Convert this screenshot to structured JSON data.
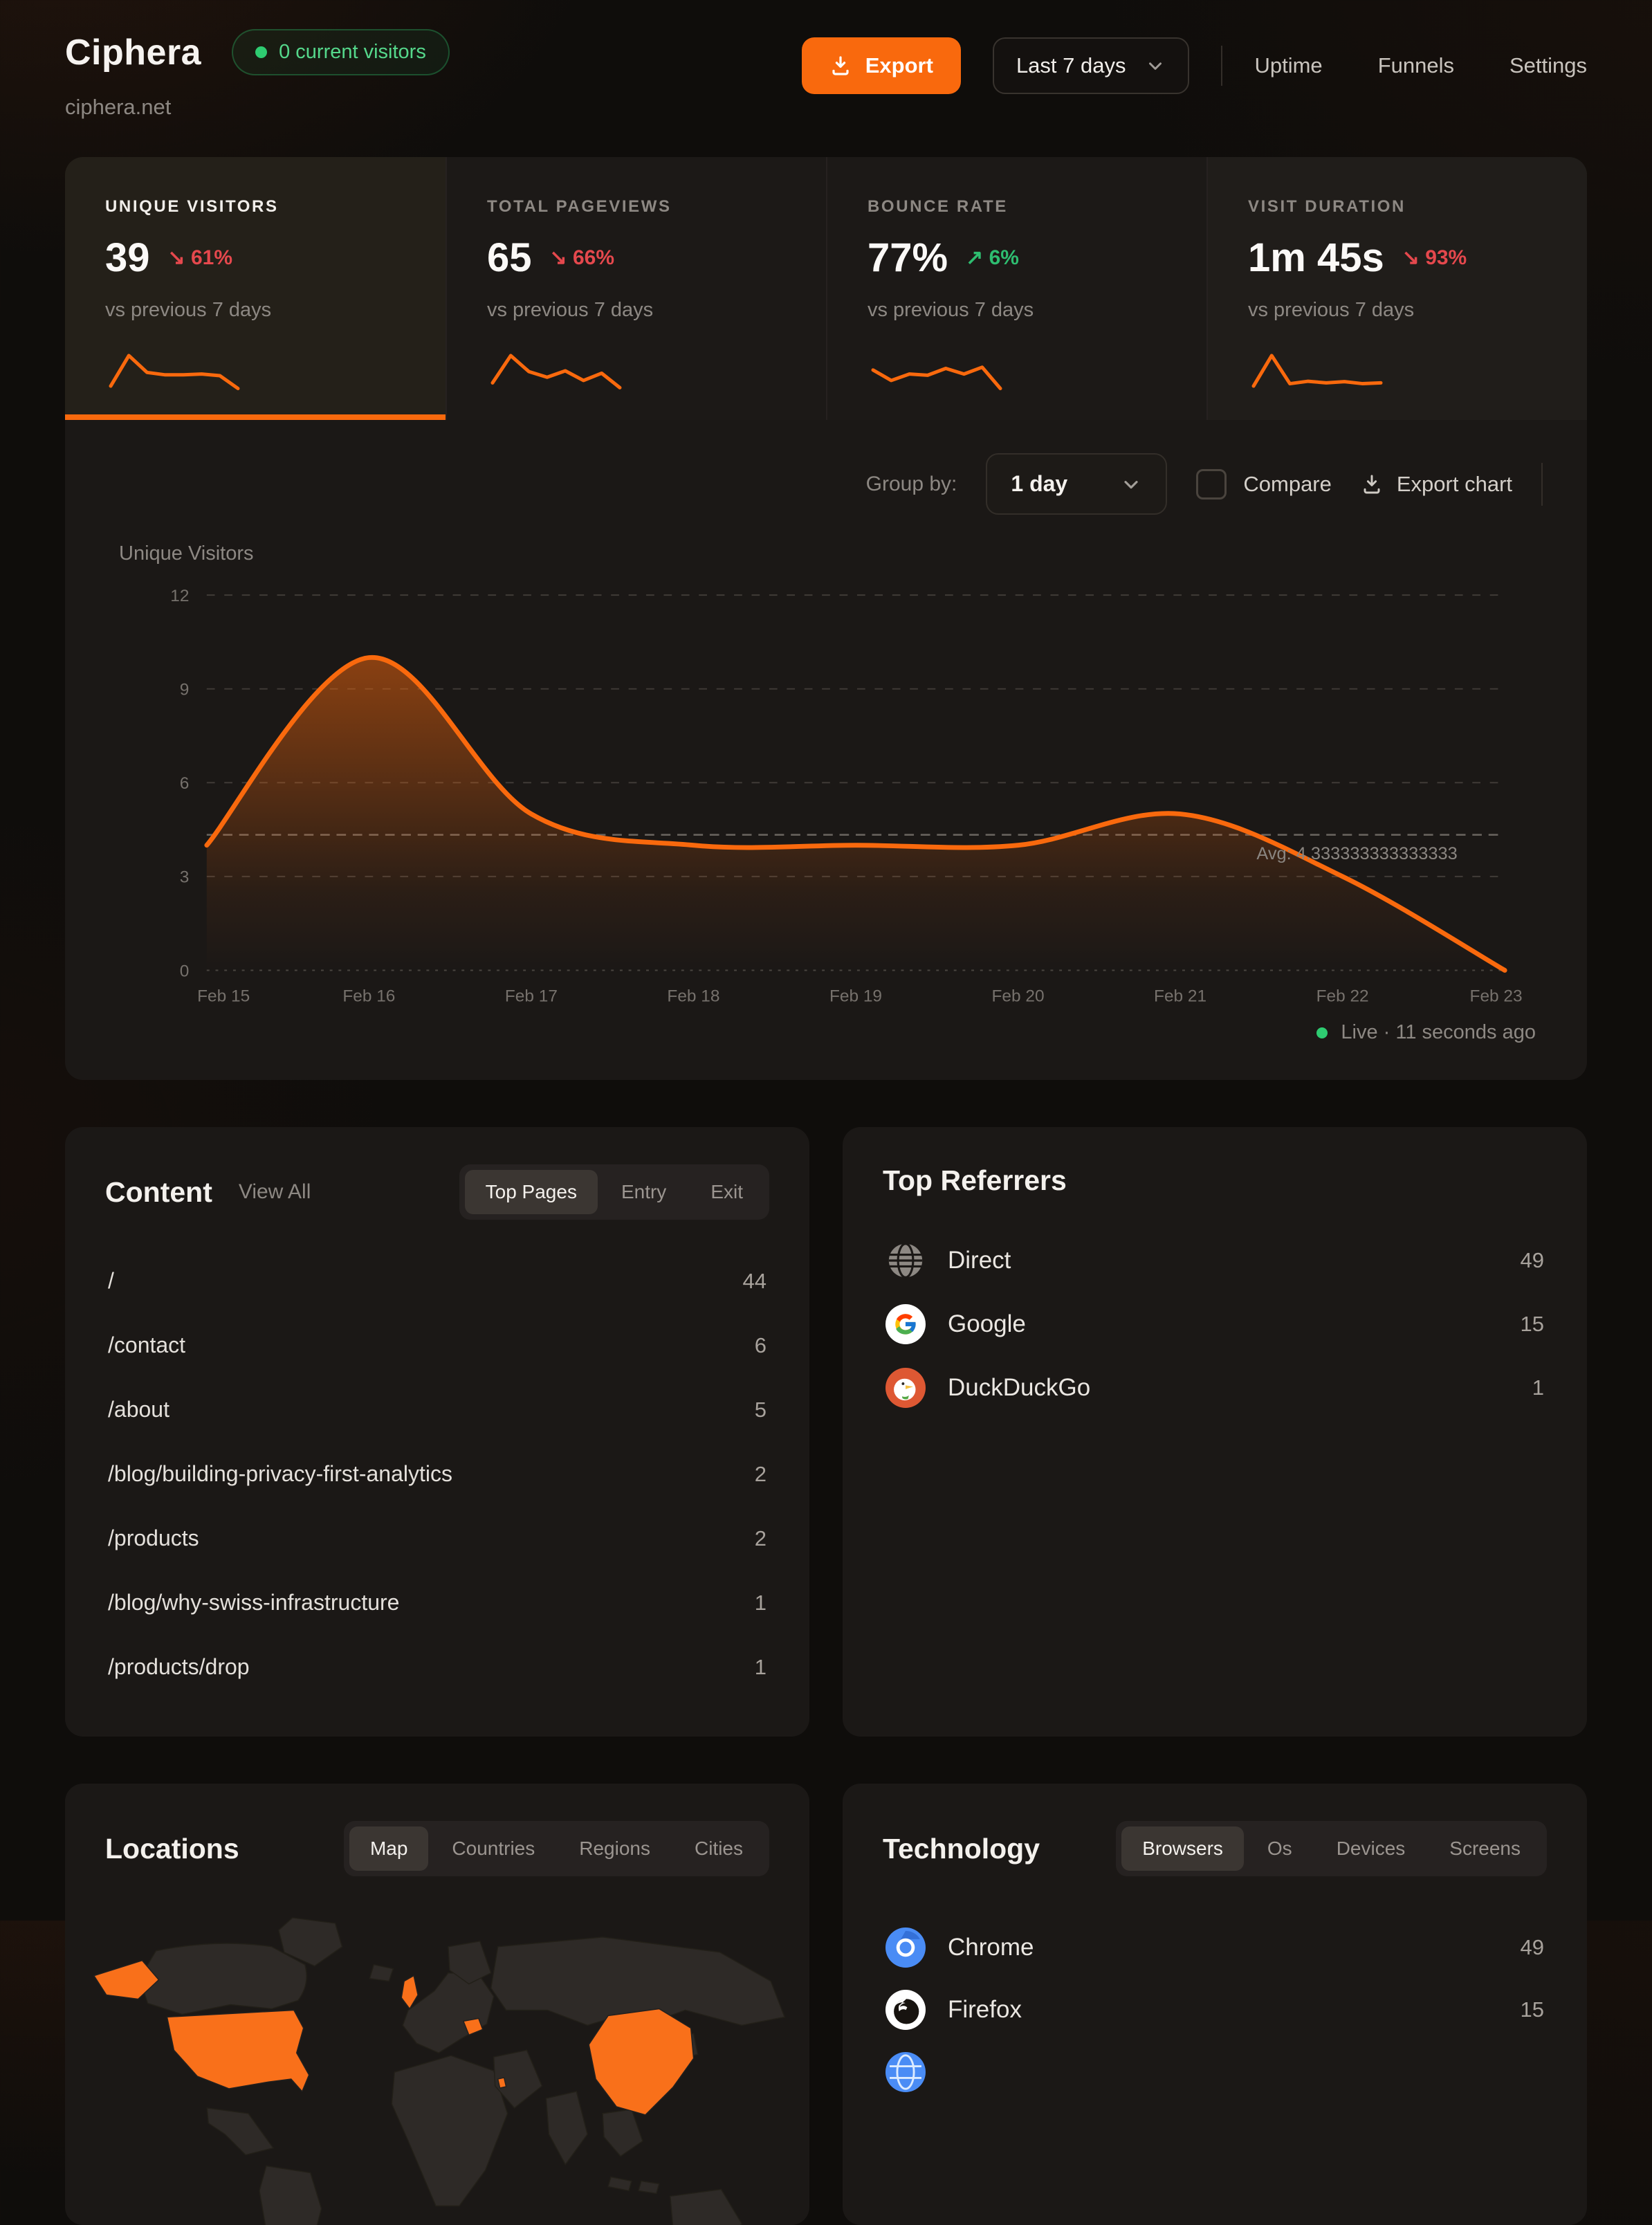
{
  "colors": {
    "accent": "#f9690d",
    "negative": "#e5484d",
    "positive": "#2ebd70",
    "live_green": "#2ecc71",
    "map_land": "#2e2a27",
    "map_highlight": "#f9701a"
  },
  "header": {
    "site_name": "Ciphera",
    "domain": "ciphera.net",
    "visitors_badge": "0 current visitors",
    "export_label": "Export",
    "date_range": "Last 7 days",
    "nav": [
      "Uptime",
      "Funnels",
      "Settings"
    ]
  },
  "stats": [
    {
      "label": "UNIQUE VISITORS",
      "value": "39",
      "delta": "61%",
      "direction": "down",
      "sub": "vs previous 7 days",
      "spark": [
        1.2,
        8.8,
        4.6,
        4.0,
        4.0,
        4.2,
        3.8,
        0.6
      ]
    },
    {
      "label": "TOTAL PAGEVIEWS",
      "value": "65",
      "delta": "66%",
      "direction": "down",
      "sub": "vs previous 7 days",
      "spark": [
        2.0,
        8.8,
        4.8,
        3.4,
        5.0,
        2.6,
        4.4,
        0.8
      ]
    },
    {
      "label": "BOUNCE RATE",
      "value": "77%",
      "delta": "6%",
      "direction": "up",
      "sub": "vs previous 7 days",
      "spark": [
        5.2,
        2.6,
        4.2,
        3.9,
        5.6,
        4.2,
        5.9,
        0.6
      ]
    },
    {
      "label": "VISIT DURATION",
      "value": "1m 45s",
      "delta": "93%",
      "direction": "down",
      "sub": "vs previous 7 days",
      "spark": [
        1.2,
        8.8,
        1.8,
        2.4,
        2.0,
        2.3,
        1.8,
        2.0
      ]
    }
  ],
  "chart_controls": {
    "group_by_label": "Group by:",
    "group_by_value": "1 day",
    "compare_label": "Compare",
    "export_chart_label": "Export chart"
  },
  "chart_data": {
    "type": "area",
    "series_label": "Unique Visitors",
    "x": [
      "Feb 15",
      "Feb 16",
      "Feb 17",
      "Feb 18",
      "Feb 19",
      "Feb 20",
      "Feb 21",
      "Feb 22",
      "Feb 23"
    ],
    "values": [
      4,
      10,
      5,
      4,
      4,
      4,
      5,
      3,
      0
    ],
    "avg": 4.333333333333333,
    "avg_label": "Avg: 4.333333333333333",
    "y_ticks": [
      0,
      3,
      6,
      9,
      12
    ],
    "ylim": [
      0,
      12
    ],
    "grid": "dashed-horizontal",
    "legend": "none",
    "line_color": "#f9690d"
  },
  "live_status": "Live · 11 seconds ago",
  "content": {
    "title": "Content",
    "view_all": "View All",
    "tabs": [
      "Top Pages",
      "Entry",
      "Exit"
    ],
    "active_tab": "Top Pages",
    "rows": [
      {
        "path": "/",
        "count": "44"
      },
      {
        "path": "/contact",
        "count": "6"
      },
      {
        "path": "/about",
        "count": "5"
      },
      {
        "path": "/blog/building-privacy-first-analytics",
        "count": "2"
      },
      {
        "path": "/products",
        "count": "2"
      },
      {
        "path": "/blog/why-swiss-infrastructure",
        "count": "1"
      },
      {
        "path": "/products/drop",
        "count": "1"
      }
    ]
  },
  "referrers": {
    "title": "Top Referrers",
    "rows": [
      {
        "name": "Direct",
        "count": "49",
        "icon": "globe-icon"
      },
      {
        "name": "Google",
        "count": "15",
        "icon": "google-icon"
      },
      {
        "name": "DuckDuckGo",
        "count": "1",
        "icon": "duckduckgo-icon"
      }
    ]
  },
  "locations": {
    "title": "Locations",
    "tabs": [
      "Map",
      "Countries",
      "Regions",
      "Cities"
    ],
    "active_tab": "Map",
    "highlighted_countries": [
      "United States",
      "United Kingdom",
      "Romania",
      "Israel",
      "China"
    ]
  },
  "technology": {
    "title": "Technology",
    "tabs": [
      "Browsers",
      "Os",
      "Devices",
      "Screens"
    ],
    "active_tab": "Browsers",
    "rows": [
      {
        "name": "Chrome",
        "count": "49",
        "icon": "chrome-icon"
      },
      {
        "name": "Firefox",
        "count": "15",
        "icon": "firefox-icon"
      }
    ]
  }
}
